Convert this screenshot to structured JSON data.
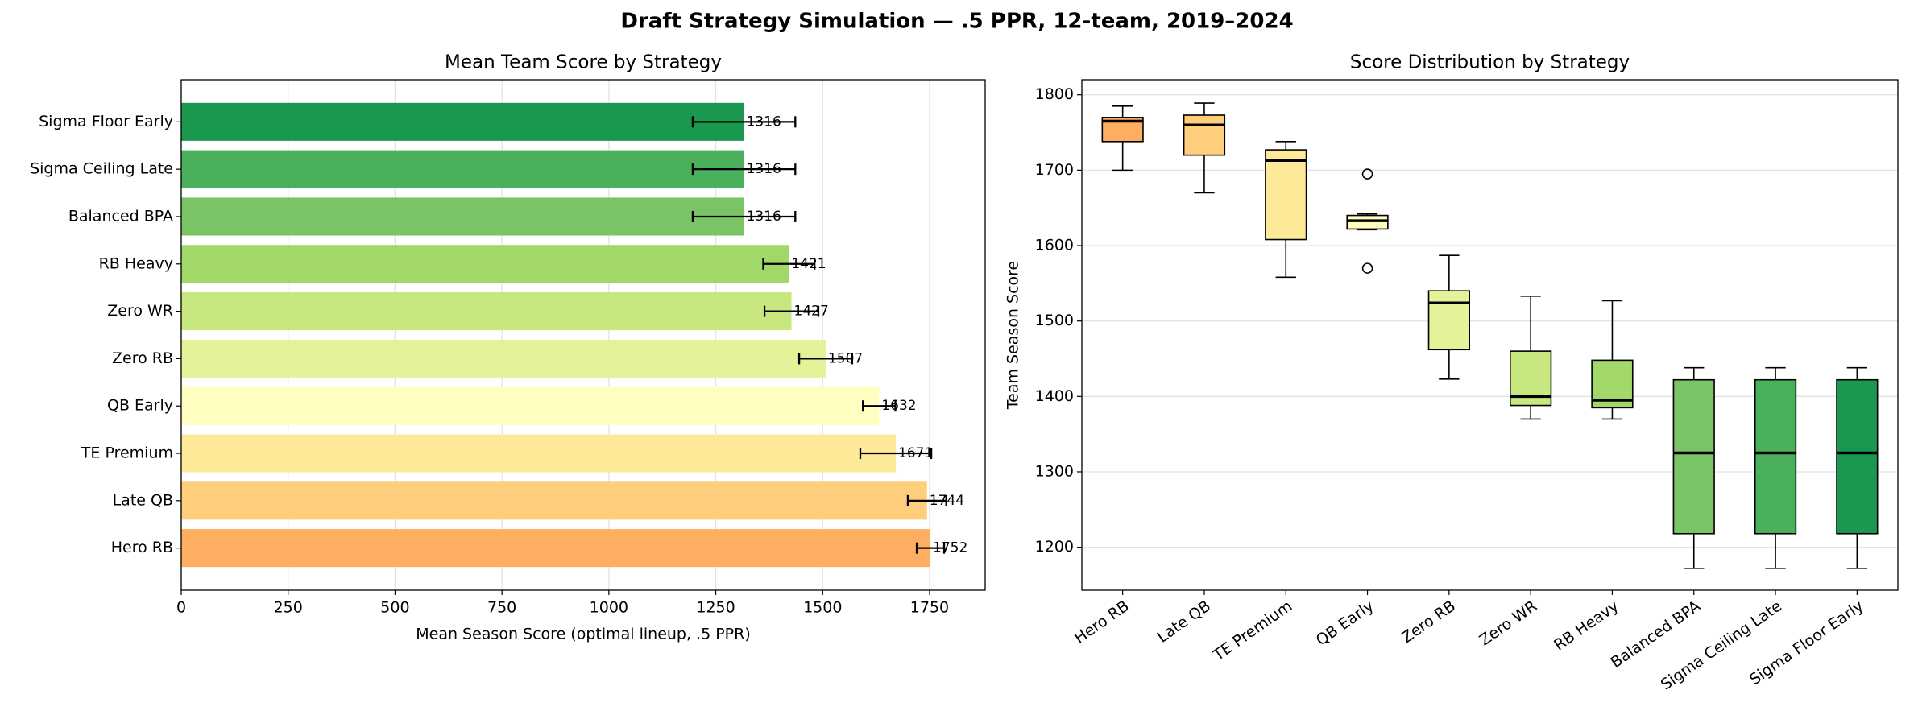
{
  "title": "Draft Strategy Simulation — .5 PPR, 12-team, 2019–2024",
  "chart_data": [
    {
      "type": "barh",
      "title": "Mean Team Score by Strategy",
      "x_label": "Mean Season Score (optimal lineup, .5 PPR)",
      "categories": [
        "Hero RB",
        "Late QB",
        "TE Premium",
        "QB Early",
        "Zero RB",
        "Zero WR",
        "RB Heavy",
        "Balanced BPA",
        "Sigma Ceiling Late",
        "Sigma Floor Early"
      ],
      "values": [
        1752,
        1744,
        1671,
        1632,
        1507,
        1427,
        1421,
        1316,
        1316,
        1316
      ],
      "errors": [
        32,
        45,
        83,
        38,
        62,
        63,
        60,
        120,
        120,
        120
      ],
      "colors": [
        "#fdae61",
        "#fece7c",
        "#fee999",
        "#fefec0",
        "#e3f399",
        "#c7e77f",
        "#a2d76a",
        "#7ac465",
        "#4bb05c",
        "#1a9850"
      ],
      "xlim": [
        0,
        1880
      ],
      "xticks": [
        0,
        250,
        500,
        750,
        1000,
        1250,
        1500,
        1750
      ],
      "grid": true
    },
    {
      "type": "box",
      "title": "Score Distribution by Strategy",
      "y_label": "Team Season Score",
      "categories": [
        "Hero RB",
        "Late QB",
        "TE Premium",
        "QB Early",
        "Zero RB",
        "Zero WR",
        "RB Heavy",
        "Balanced BPA",
        "Sigma Ceiling Late",
        "Sigma Floor Early"
      ],
      "boxes": [
        {
          "whislo": 1700,
          "q1": 1738,
          "med": 1765,
          "q3": 1770,
          "whishi": 1785,
          "fliers": []
        },
        {
          "whislo": 1670,
          "q1": 1720,
          "med": 1760,
          "q3": 1773,
          "whishi": 1789,
          "fliers": []
        },
        {
          "whislo": 1558,
          "q1": 1608,
          "med": 1713,
          "q3": 1727,
          "whishi": 1738,
          "fliers": []
        },
        {
          "whislo": 1621,
          "q1": 1622,
          "med": 1633,
          "q3": 1640,
          "whishi": 1642,
          "fliers": [
            1695,
            1570
          ]
        },
        {
          "whislo": 1423,
          "q1": 1462,
          "med": 1524,
          "q3": 1540,
          "whishi": 1587,
          "fliers": []
        },
        {
          "whislo": 1370,
          "q1": 1388,
          "med": 1400,
          "q3": 1460,
          "whishi": 1533,
          "fliers": []
        },
        {
          "whislo": 1370,
          "q1": 1385,
          "med": 1395,
          "q3": 1448,
          "whishi": 1527,
          "fliers": []
        },
        {
          "whislo": 1172,
          "q1": 1218,
          "med": 1325,
          "q3": 1422,
          "whishi": 1438,
          "fliers": []
        },
        {
          "whislo": 1172,
          "q1": 1218,
          "med": 1325,
          "q3": 1422,
          "whishi": 1438,
          "fliers": []
        },
        {
          "whislo": 1172,
          "q1": 1218,
          "med": 1325,
          "q3": 1422,
          "whishi": 1438,
          "fliers": []
        }
      ],
      "colors": [
        "#fdae61",
        "#fece7c",
        "#fee999",
        "#fefec0",
        "#e3f399",
        "#c7e77f",
        "#a2d76a",
        "#7ac465",
        "#4bb05c",
        "#1a9850"
      ],
      "ylim": [
        1143,
        1820
      ],
      "yticks": [
        1200,
        1300,
        1400,
        1500,
        1600,
        1700,
        1800
      ],
      "grid": true
    }
  ]
}
